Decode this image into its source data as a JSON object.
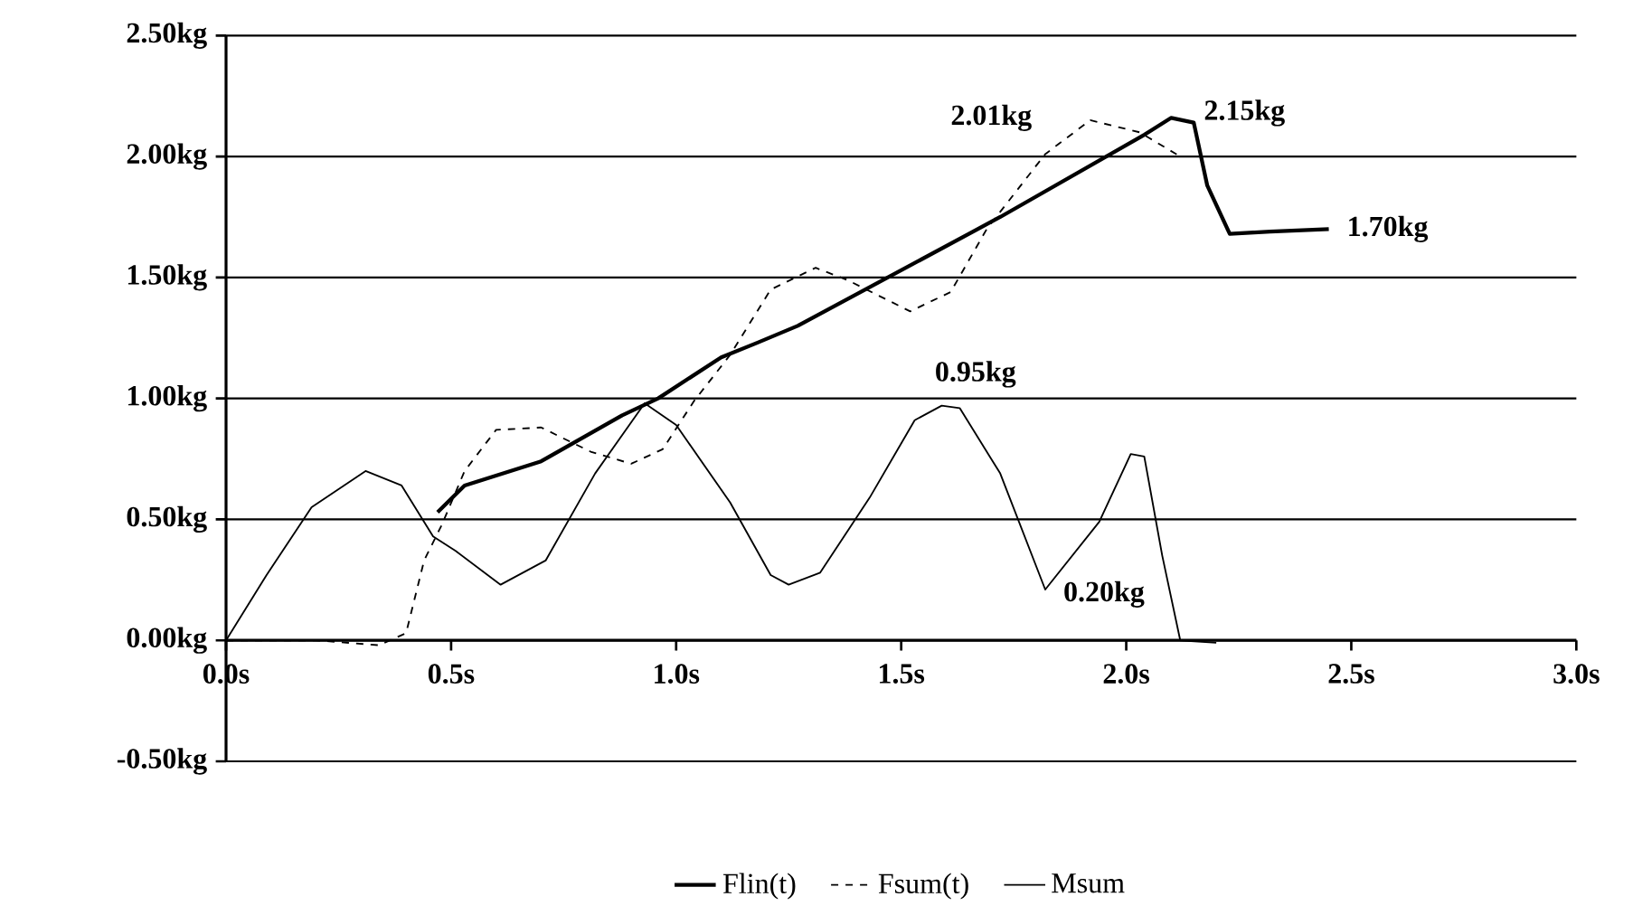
{
  "chart_data": {
    "type": "line",
    "xlim": [
      0,
      3
    ],
    "ylim": [
      -0.5,
      2.5
    ],
    "xticks": [
      {
        "value": 0,
        "label": "0.0s"
      },
      {
        "value": 0.5,
        "label": "0.5s"
      },
      {
        "value": 1,
        "label": "1.0s"
      },
      {
        "value": 1.5,
        "label": "1.5s"
      },
      {
        "value": 2,
        "label": "2.0s"
      },
      {
        "value": 2.5,
        "label": "2.5s"
      },
      {
        "value": 3,
        "label": "3.0s"
      }
    ],
    "yticks": [
      {
        "value": -0.5,
        "label": "-0.50kg"
      },
      {
        "value": 0,
        "label": "0.00kg"
      },
      {
        "value": 0.5,
        "label": "0.50kg"
      },
      {
        "value": 1,
        "label": "1.00kg"
      },
      {
        "value": 1.5,
        "label": "1.50kg"
      },
      {
        "value": 2,
        "label": "2.00kg"
      },
      {
        "value": 2.5,
        "label": "2.50kg"
      }
    ],
    "grid": "y",
    "legend": "bottom",
    "series": [
      {
        "name": "Flin(t)",
        "color": "#000000",
        "line_style": "solid",
        "x": [
          0.47,
          0.53,
          0.7,
          0.88,
          0.96,
          1.1,
          1.18,
          1.27,
          1.72,
          2.04,
          2.1,
          2.15,
          2.18,
          2.23,
          2.32,
          2.45
        ],
        "values": [
          0.53,
          0.64,
          0.74,
          0.93,
          1.0,
          1.17,
          1.23,
          1.3,
          1.75,
          2.09,
          2.16,
          2.14,
          1.88,
          1.68,
          1.69,
          1.7
        ]
      },
      {
        "name": "Fsum(t)",
        "color": "#000000",
        "line_style": "dashed",
        "x": [
          0,
          0.2,
          0.34,
          0.4,
          0.44,
          0.48,
          0.53,
          0.6,
          0.7,
          0.81,
          0.9,
          0.97,
          1.04,
          1.12,
          1.21,
          1.31,
          1.38,
          1.52,
          1.61,
          1.69,
          1.82,
          1.92,
          2.03,
          2.12
        ],
        "values": [
          0,
          0,
          -0.02,
          0.03,
          0.33,
          0.48,
          0.7,
          0.87,
          0.88,
          0.78,
          0.73,
          0.79,
          0.99,
          1.18,
          1.45,
          1.54,
          1.49,
          1.36,
          1.44,
          1.7,
          2.01,
          2.15,
          2.1,
          2.0
        ]
      },
      {
        "name": "Msum",
        "color": "#000000",
        "line_style": "solid",
        "x": [
          0,
          0.09,
          0.19,
          0.31,
          0.39,
          0.46,
          0.51,
          0.61,
          0.71,
          0.82,
          0.93,
          1.0,
          1.12,
          1.21,
          1.25,
          1.32,
          1.43,
          1.53,
          1.59,
          1.63,
          1.72,
          1.82,
          1.94,
          2.01,
          2.04,
          2.08,
          2.12,
          2.2
        ],
        "values": [
          0,
          0.27,
          0.55,
          0.7,
          0.64,
          0.43,
          0.37,
          0.23,
          0.33,
          0.69,
          0.98,
          0.89,
          0.57,
          0.27,
          0.23,
          0.28,
          0.59,
          0.91,
          0.97,
          0.96,
          0.69,
          0.21,
          0.49,
          0.77,
          0.76,
          0.35,
          0,
          -0.01
        ]
      }
    ],
    "annotations": [
      {
        "text": "2.01kg",
        "x": 1.82,
        "y": 2.01
      },
      {
        "text": "2.15kg",
        "x": 2.1,
        "y": 2.16
      },
      {
        "text": "1.70kg",
        "x": 2.45,
        "y": 1.7
      },
      {
        "text": "0.95kg",
        "x": 1.59,
        "y": 0.97
      },
      {
        "text": "0.20kg",
        "x": 1.82,
        "y": 0.21
      }
    ]
  }
}
